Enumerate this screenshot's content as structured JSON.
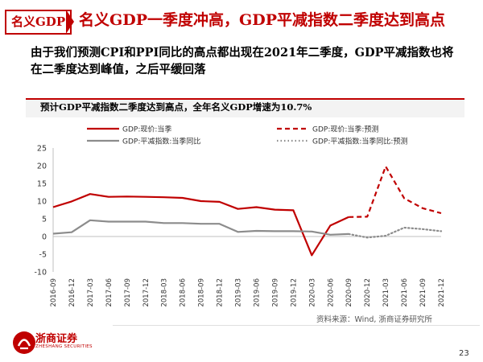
{
  "header": {
    "tag": "名义GDP",
    "title": "名义GDP一季度冲高，GDP平减指数二季度达到高点"
  },
  "subtitle": "由于我们预测CPI和PPI同比的高点都出现在2021年二季度，GDP平减指数也将在二季度达到峰值，之后平缓回落",
  "chart_title": "预计GDP平减指数二季度达到高点，全年名义GDP增速为10.7%",
  "source": "资料来源：Wind, 浙商证券研究所",
  "brand": {
    "name": "浙商证券",
    "sub": "ZHESHANG SECURITIES"
  },
  "page_number": "23",
  "colors": {
    "accent": "#c00000",
    "red_series": "#c00000",
    "gray_series": "#8c8c8c"
  },
  "chart_data": {
    "type": "line",
    "title": "预计GDP平减指数二季度达到高点，全年名义GDP增速为10.7%",
    "xlabel": "",
    "ylabel": "",
    "ylim": [
      -10,
      25
    ],
    "yticks": [
      -10,
      -5,
      0,
      5,
      10,
      15,
      20,
      25
    ],
    "categories": [
      "2016-09",
      "2016-12",
      "2017-03",
      "2017-06",
      "2017-09",
      "2017-12",
      "2018-03",
      "2018-06",
      "2018-09",
      "2018-12",
      "2019-03",
      "2019-06",
      "2019-09",
      "2019-12",
      "2020-03",
      "2020-06",
      "2020-09",
      "2020-12",
      "2021-03",
      "2021-06",
      "2021-09",
      "2021-12"
    ],
    "series": [
      {
        "name": "GDP:现价:当季",
        "style": "solid",
        "color": "#c00000",
        "values": [
          8.3,
          9.9,
          12.0,
          11.2,
          11.3,
          11.2,
          11.1,
          10.9,
          10.0,
          9.8,
          7.8,
          8.3,
          7.6,
          7.4,
          -5.3,
          3.1,
          5.5,
          null,
          null,
          null,
          null,
          null
        ]
      },
      {
        "name": "GDP:现价:当季:预测",
        "style": "dashed",
        "color": "#c00000",
        "values": [
          null,
          null,
          null,
          null,
          null,
          null,
          null,
          null,
          null,
          null,
          null,
          null,
          null,
          null,
          null,
          null,
          5.5,
          5.6,
          19.8,
          10.8,
          8.0,
          6.6
        ]
      },
      {
        "name": "GDP:平减指数:当季同比",
        "style": "solid",
        "color": "#8c8c8c",
        "values": [
          0.8,
          1.2,
          4.6,
          4.2,
          4.2,
          4.2,
          3.8,
          3.8,
          3.6,
          3.6,
          1.3,
          1.6,
          1.5,
          1.5,
          1.4,
          0.5,
          0.7,
          null,
          null,
          null,
          null,
          null
        ]
      },
      {
        "name": "GDP:平减指数:当季同比:预测",
        "style": "dotted",
        "color": "#8c8c8c",
        "values": [
          null,
          null,
          null,
          null,
          null,
          null,
          null,
          null,
          null,
          null,
          null,
          null,
          null,
          null,
          null,
          null,
          0.7,
          -0.3,
          0.2,
          2.5,
          2.1,
          1.5
        ]
      }
    ],
    "legend": "top"
  }
}
